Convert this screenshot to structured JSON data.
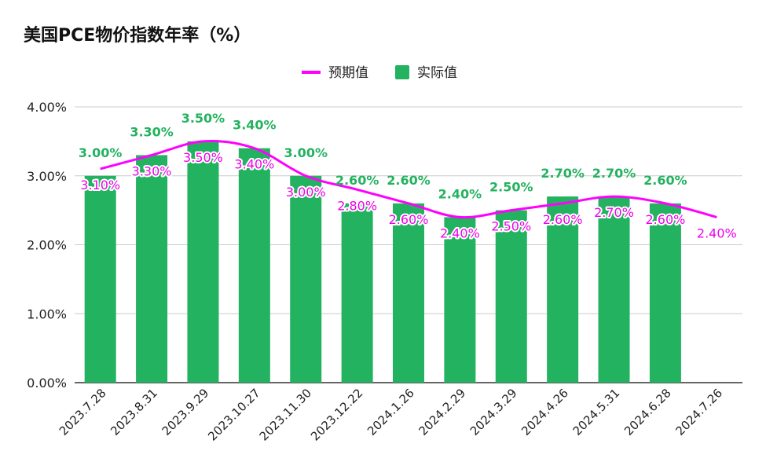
{
  "chart_data": {
    "type": "bar",
    "title": "美国PCE物价指数年率（%）",
    "categories": [
      "2023.7.28",
      "2023.8.31",
      "2023.9.29",
      "2023.10.27",
      "2023.11.30",
      "2023.12.22",
      "2024.1.26",
      "2024.2.29",
      "2024.3.29",
      "2024.4.26",
      "2024.5.31",
      "2024.6.28",
      "2024.7.26"
    ],
    "series": [
      {
        "name": "预期值",
        "type": "line",
        "color": "#ff00ff",
        "values": [
          3.1,
          3.3,
          3.5,
          3.4,
          3.0,
          2.8,
          2.6,
          2.4,
          2.5,
          2.6,
          2.7,
          2.6,
          2.4
        ],
        "labels": [
          "3.10%",
          "3.30%",
          "3.50%",
          "3.40%",
          "3.00%",
          "2.80%",
          "2.60%",
          "2.40%",
          "2.50%",
          "2.60%",
          "2.70%",
          "2.60%",
          "2.40%"
        ]
      },
      {
        "name": "实际值",
        "type": "bar",
        "color": "#23b25f",
        "values": [
          3.0,
          3.3,
          3.5,
          3.4,
          3.0,
          2.6,
          2.6,
          2.4,
          2.5,
          2.7,
          2.7,
          2.6,
          null
        ],
        "labels": [
          "3.00%",
          "3.30%",
          "3.50%",
          "3.40%",
          "3.00%",
          "2.60%",
          "2.60%",
          "2.40%",
          "2.50%",
          "2.70%",
          "2.70%",
          "2.60%",
          ""
        ]
      }
    ],
    "yticks": [
      "0.00%",
      "1.00%",
      "2.00%",
      "3.00%",
      "4.00%"
    ],
    "ylim": [
      0,
      4
    ],
    "grid": true,
    "legend_position": "top-center"
  }
}
